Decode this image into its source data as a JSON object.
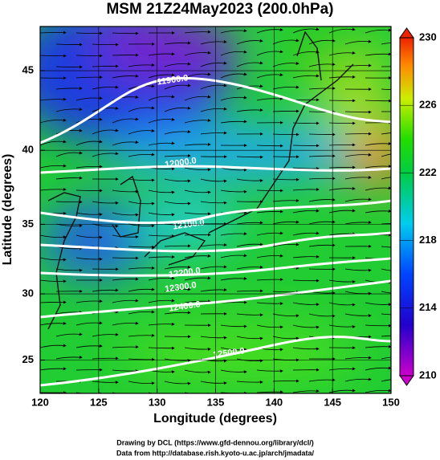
{
  "chart_data": {
    "type": "map",
    "title": "MSM 21Z24May2023 (200.0hPa)",
    "xlabel": "Longitude (degrees)",
    "ylabel": "Latitude  (degrees)",
    "xlim": [
      120,
      150
    ],
    "ylim": [
      22.4,
      47.6
    ],
    "xticks": [
      120,
      125,
      130,
      135,
      140,
      145,
      150
    ],
    "yticks": [
      25,
      30,
      35,
      40,
      45
    ],
    "grid": true,
    "projection": "mercator",
    "clim": [
      210,
      230
    ],
    "cticks": [
      210,
      214,
      218,
      222,
      226,
      230
    ],
    "contour_labels": [
      "11900.0",
      "12000.0",
      "12100.0",
      "12200.0",
      "12300.0",
      "12400.0",
      "12500.0"
    ],
    "footer": [
      "Drawing by DCL (https://www.gfd-dennou.org/library/dcl/)",
      "Data from http://database.rish.kyoto-u.ac.jp/arch/jmadata/"
    ]
  }
}
